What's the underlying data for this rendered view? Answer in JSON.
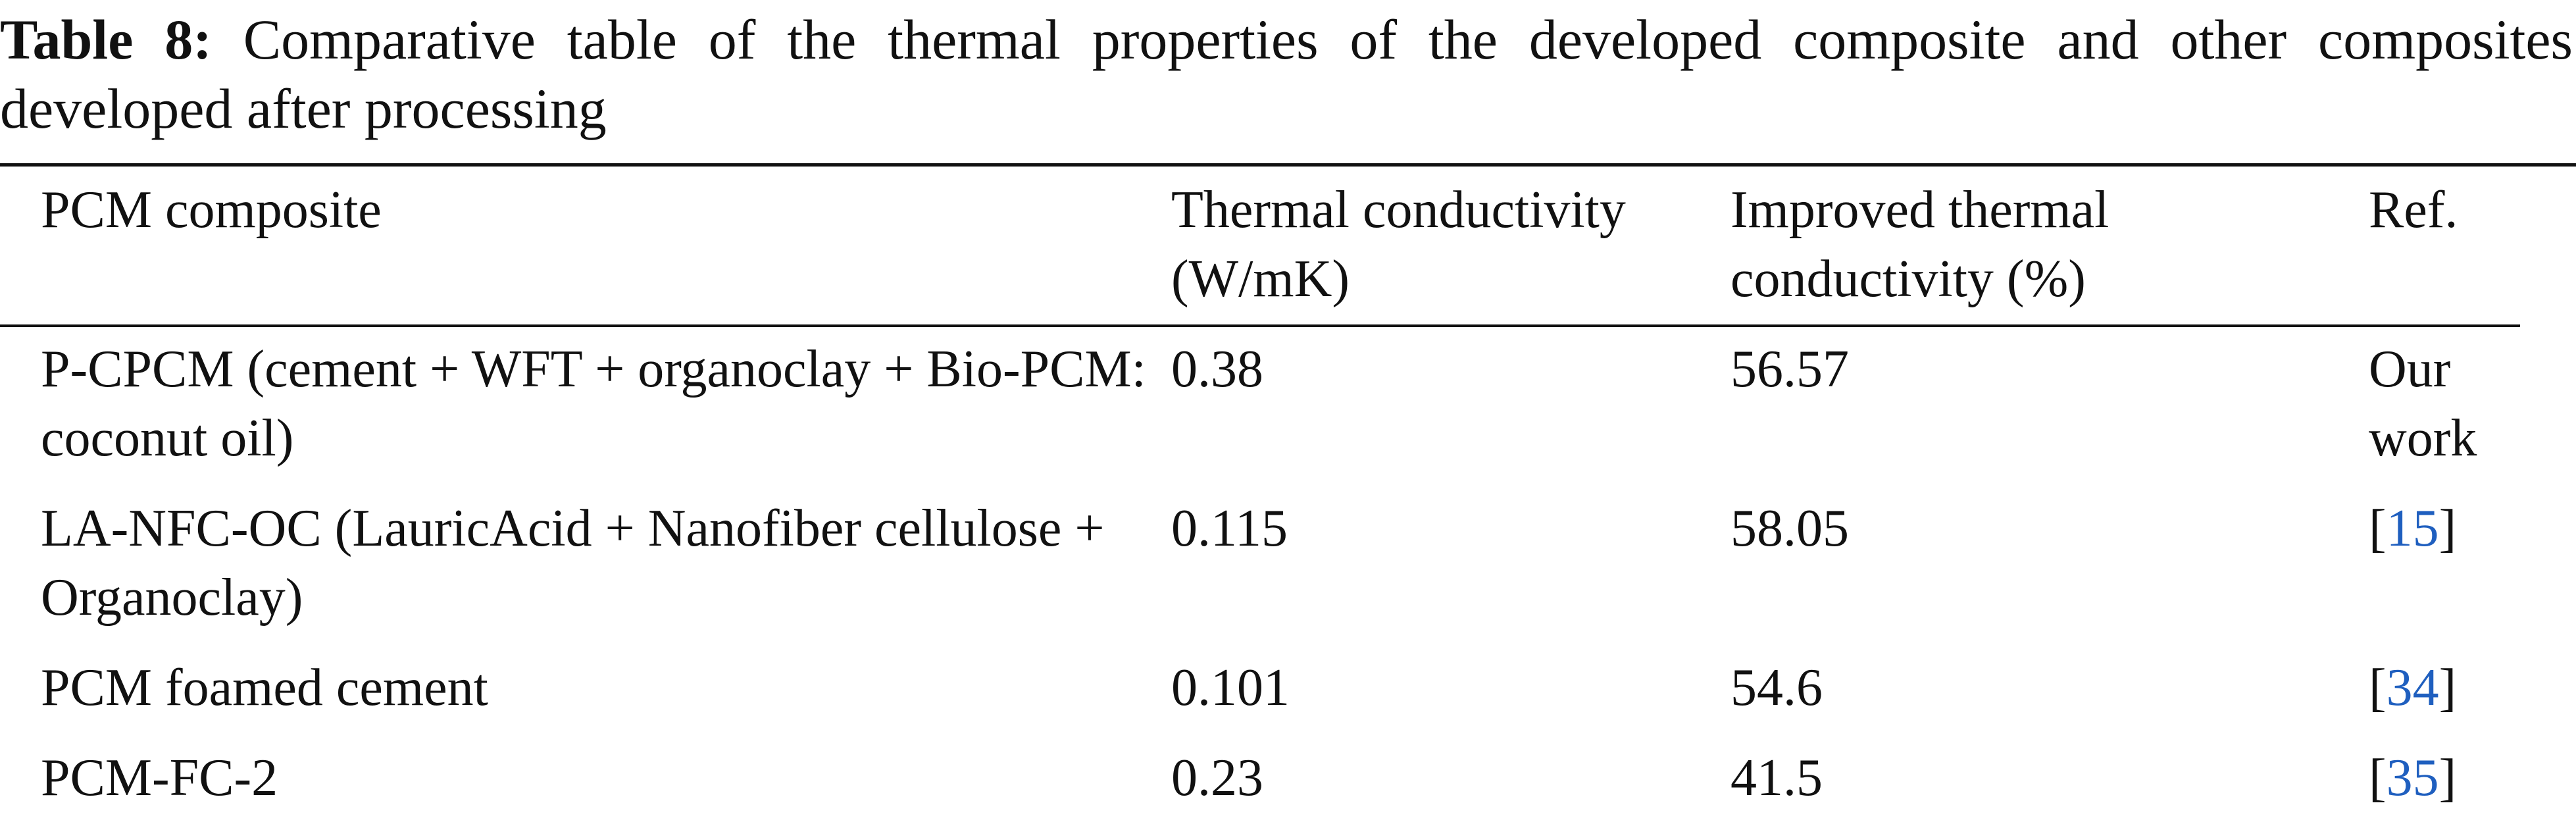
{
  "title": {
    "label": "Table 8:",
    "text": "Comparative table of the thermal properties of the developed composite and other composites developed after processing"
  },
  "table": {
    "header": [
      "PCM composite",
      "Thermal conductivity (W/mK)",
      "Improved thermal conductivity (%)",
      "Ref."
    ],
    "rows": [
      [
        "P-CPCM (cement + WFT + organoclay + Bio-PCM: coconut oil)",
        "0.38",
        "56.57",
        "Our work"
      ],
      [
        "LA-NFC-OC (LauricAcid + Nanofiber cellulose + Organoclay)",
        "0.115",
        "58.05",
        [
          "[",
          "15",
          "]"
        ]
      ],
      [
        "PCM foamed cement",
        "0.101",
        "54.6",
        [
          "[",
          "34",
          "]"
        ]
      ],
      [
        "PCM-FC-2",
        "0.23",
        "41.5",
        [
          "[",
          "35",
          "]"
        ]
      ]
    ]
  }
}
